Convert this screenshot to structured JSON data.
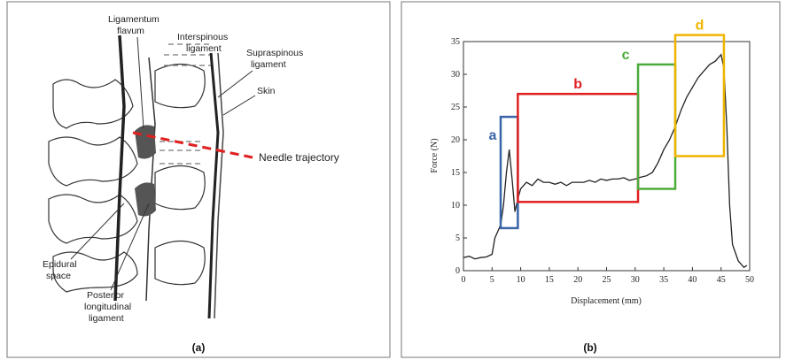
{
  "diagram": {
    "labels": [
      {
        "lines": [
          "Ligamentum",
          "flavum"
        ]
      },
      {
        "lines": [
          "Interspinous",
          "ligament"
        ]
      },
      {
        "lines": [
          "Supraspinous",
          "ligament"
        ]
      },
      {
        "lines": [
          "Skin"
        ]
      },
      {
        "lines": [
          "Needle trajectory"
        ]
      },
      {
        "lines": [
          "Epidural",
          "space"
        ]
      },
      {
        "lines": [
          "Posterior",
          "longitudinal",
          "ligament"
        ]
      }
    ],
    "caption": "(a)"
  },
  "chart_data": {
    "type": "line",
    "caption": "(b)",
    "xlabel": "Displacement (mm)",
    "ylabel": "Force (N)",
    "color": "#222222",
    "x": [
      0,
      1,
      2,
      3,
      4,
      5,
      5.5,
      6,
      6.5,
      7,
      7.5,
      8,
      8.5,
      9,
      9.5,
      10,
      11,
      12,
      13,
      14,
      15,
      16,
      17,
      18,
      19,
      20,
      21,
      22,
      23,
      24,
      25,
      26,
      27,
      28,
      29,
      30,
      31,
      32,
      33,
      34,
      35,
      36,
      37,
      38,
      39,
      40,
      41,
      42,
      43,
      44,
      45,
      45.5,
      46,
      46.5,
      47,
      48,
      49,
      49.5
    ],
    "values": [
      2,
      2.2,
      1.8,
      2,
      2.1,
      2.5,
      5,
      6,
      7,
      10,
      15,
      18.5,
      14,
      9,
      11,
      12.5,
      13.5,
      13,
      14,
      13.5,
      13.5,
      13.2,
      13.5,
      13,
      13.5,
      13.5,
      13.5,
      13.8,
      13.5,
      14,
      13.8,
      14,
      14,
      14.2,
      13.8,
      14,
      14.3,
      14.5,
      15,
      16.5,
      18.5,
      20,
      22,
      24.5,
      26.5,
      28,
      29.5,
      30.5,
      31.5,
      32,
      33,
      31,
      22,
      10,
      4,
      1.5,
      0.5,
      0.8
    ],
    "xlim": [
      0,
      50
    ],
    "ylim": [
      0,
      35
    ],
    "xticks": [
      0,
      5,
      10,
      15,
      20,
      25,
      30,
      35,
      40,
      45,
      50
    ],
    "yticks": [
      0,
      5,
      10,
      15,
      20,
      25,
      30,
      35
    ],
    "regions": [
      {
        "label": "a",
        "color": "#3a64a8",
        "x": [
          6.5,
          9.5
        ],
        "y": [
          6.5,
          23.5
        ]
      },
      {
        "label": "b",
        "color": "#e02020",
        "x": [
          9.5,
          30.5
        ],
        "y": [
          10.5,
          27
        ]
      },
      {
        "label": "c",
        "color": "#4caa3c",
        "x": [
          30.5,
          37
        ],
        "y": [
          12.5,
          31.5
        ]
      },
      {
        "label": "d",
        "color": "#f0b400",
        "x": [
          37,
          45.5
        ],
        "y": [
          17.5,
          36
        ]
      }
    ]
  }
}
